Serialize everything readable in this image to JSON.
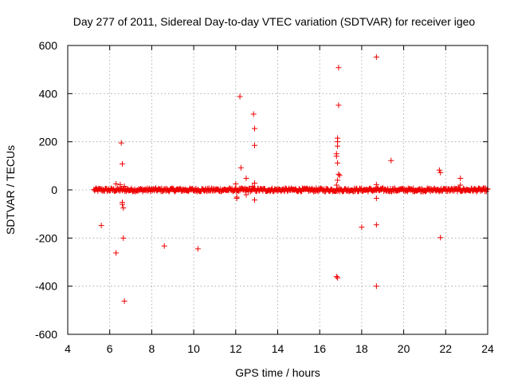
{
  "chart_data": {
    "type": "scatter",
    "title": "Day 277 of 2011, Sidereal Day-to-day VTEC variation (SDTVAR) for receiver igeo",
    "xlabel": "GPS time / hours",
    "ylabel": "SDTVAR / TECUs",
    "xlim": [
      4,
      24
    ],
    "ylim": [
      -600,
      600
    ],
    "xticks": [
      4,
      6,
      8,
      10,
      12,
      14,
      16,
      18,
      20,
      22,
      24
    ],
    "yticks": [
      -600,
      -400,
      -200,
      0,
      200,
      400,
      600
    ],
    "grid": true,
    "marker": "+",
    "series_color": "#ee0000",
    "band": {
      "x_start": 5.25,
      "x_end": 24.0,
      "center": 0,
      "spread": 7,
      "description": "dense continuous band of points near zero"
    },
    "series": [
      {
        "name": "SDTVAR",
        "points": [
          [
            5.6,
            -148
          ],
          [
            6.3,
            25
          ],
          [
            6.3,
            -262
          ],
          [
            6.5,
            22
          ],
          [
            6.55,
            195
          ],
          [
            6.6,
            108
          ],
          [
            6.6,
            -52
          ],
          [
            6.6,
            -60
          ],
          [
            6.65,
            -75
          ],
          [
            6.65,
            -200
          ],
          [
            6.7,
            -462
          ],
          [
            6.7,
            15
          ],
          [
            8.6,
            -233
          ],
          [
            10.2,
            -245
          ],
          [
            12.0,
            25
          ],
          [
            12.05,
            -30
          ],
          [
            12.05,
            -35
          ],
          [
            12.2,
            388
          ],
          [
            12.25,
            92
          ],
          [
            12.5,
            48
          ],
          [
            12.5,
            -20
          ],
          [
            12.8,
            15
          ],
          [
            12.85,
            315
          ],
          [
            12.9,
            255
          ],
          [
            12.9,
            185
          ],
          [
            12.9,
            28
          ],
          [
            12.9,
            -42
          ],
          [
            16.8,
            -360
          ],
          [
            16.85,
            -365
          ],
          [
            16.9,
            508
          ],
          [
            16.9,
            352
          ],
          [
            16.85,
            215
          ],
          [
            16.85,
            200
          ],
          [
            16.85,
            182
          ],
          [
            16.8,
            150
          ],
          [
            16.8,
            140
          ],
          [
            16.85,
            112
          ],
          [
            16.9,
            65
          ],
          [
            16.95,
            60
          ],
          [
            16.8,
            20
          ],
          [
            16.85,
            40
          ],
          [
            18.0,
            -155
          ],
          [
            18.7,
            552
          ],
          [
            18.7,
            22
          ],
          [
            18.7,
            -35
          ],
          [
            18.7,
            -145
          ],
          [
            18.7,
            -400
          ],
          [
            19.4,
            122
          ],
          [
            21.7,
            82
          ],
          [
            21.75,
            72
          ],
          [
            21.75,
            -198
          ],
          [
            22.7,
            48
          ],
          [
            22.7,
            20
          ]
        ]
      }
    ]
  }
}
